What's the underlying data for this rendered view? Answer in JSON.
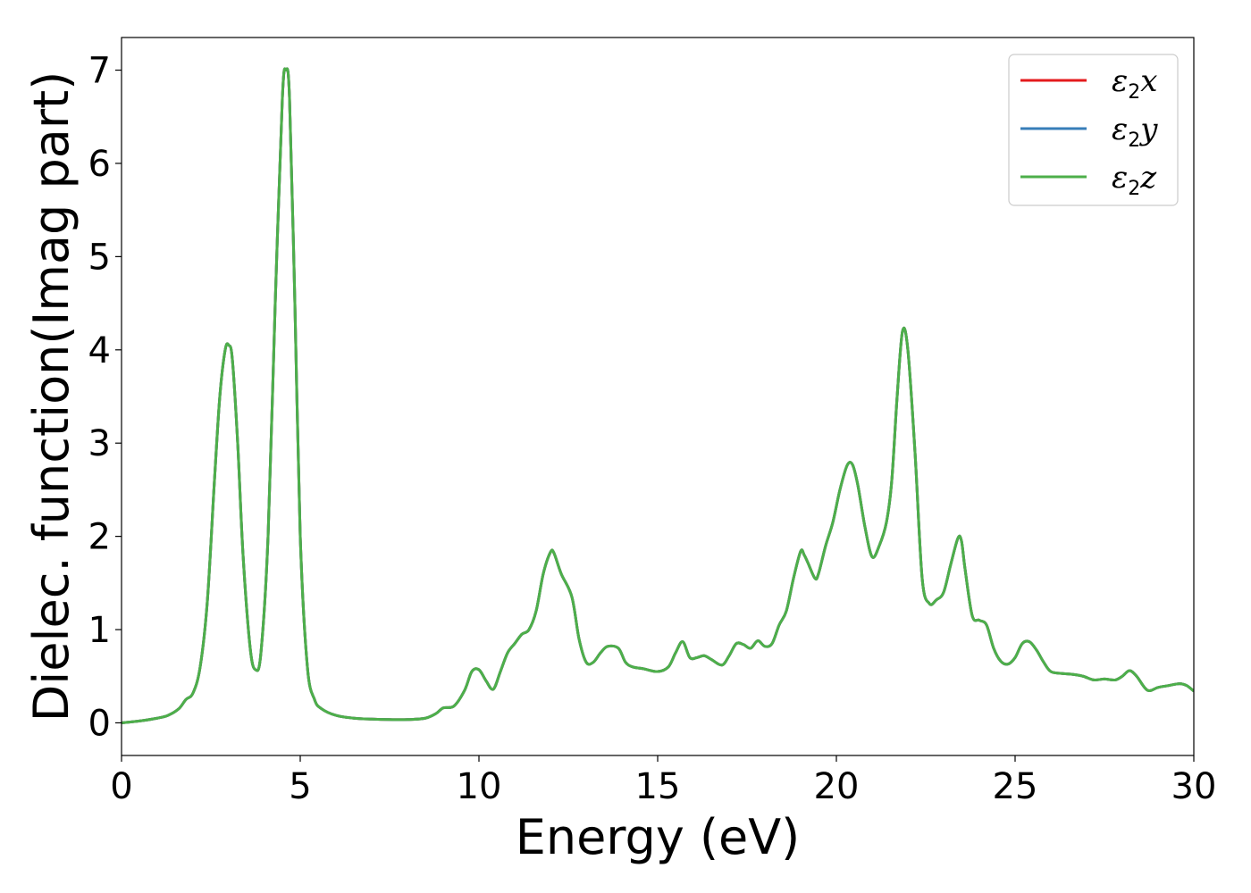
{
  "chart_data": {
    "type": "line",
    "title": "",
    "xlabel": "Energy (eV)",
    "ylabel": "Dielec. function(Imag part)",
    "xlim": [
      0,
      30
    ],
    "ylim": [
      -0.35,
      7.35
    ],
    "xticks": [
      0,
      5,
      10,
      15,
      20,
      25,
      30
    ],
    "yticks": [
      0,
      1,
      2,
      3,
      4,
      5,
      6,
      7
    ],
    "grid": false,
    "legend_position": "top-right",
    "x": [
      0,
      0.5,
      1.0,
      1.3,
      1.6,
      1.8,
      2.0,
      2.2,
      2.4,
      2.6,
      2.75,
      2.9,
      3.0,
      3.1,
      3.25,
      3.4,
      3.6,
      3.75,
      3.9,
      4.1,
      4.3,
      4.5,
      4.6,
      4.7,
      4.85,
      5.0,
      5.2,
      5.4,
      5.6,
      6.0,
      6.5,
      7.0,
      7.5,
      8.0,
      8.5,
      8.8,
      9.0,
      9.3,
      9.6,
      9.8,
      10.0,
      10.2,
      10.4,
      10.6,
      10.8,
      11.0,
      11.2,
      11.4,
      11.6,
      11.8,
      12.0,
      12.1,
      12.3,
      12.6,
      12.8,
      13.0,
      13.2,
      13.4,
      13.6,
      13.9,
      14.1,
      14.3,
      14.6,
      15.0,
      15.3,
      15.5,
      15.7,
      15.9,
      16.1,
      16.3,
      16.5,
      16.8,
      17.0,
      17.2,
      17.4,
      17.6,
      17.8,
      18.0,
      18.2,
      18.4,
      18.6,
      18.8,
      19.0,
      19.1,
      19.2,
      19.4,
      19.5,
      19.7,
      19.9,
      20.1,
      20.3,
      20.45,
      20.6,
      20.8,
      21.0,
      21.2,
      21.4,
      21.55,
      21.7,
      21.85,
      22.0,
      22.2,
      22.4,
      22.6,
      22.8,
      23.0,
      23.2,
      23.4,
      23.5,
      23.6,
      23.8,
      24.0,
      24.2,
      24.4,
      24.6,
      24.8,
      25.0,
      25.2,
      25.4,
      25.6,
      25.8,
      26.0,
      26.3,
      26.6,
      26.9,
      27.2,
      27.5,
      27.8,
      28.0,
      28.2,
      28.4,
      28.7,
      29.0,
      29.3,
      29.6,
      29.8,
      30.0
    ],
    "series": [
      {
        "name": "x",
        "color": "#e41a1c",
        "y": [
          0.0,
          0.02,
          0.05,
          0.08,
          0.15,
          0.25,
          0.32,
          0.6,
          1.3,
          2.6,
          3.5,
          4.0,
          4.05,
          3.9,
          3.0,
          1.8,
          0.8,
          0.57,
          0.75,
          2.0,
          4.5,
          6.7,
          7.0,
          6.7,
          4.5,
          2.0,
          0.6,
          0.25,
          0.15,
          0.08,
          0.05,
          0.04,
          0.035,
          0.035,
          0.05,
          0.1,
          0.16,
          0.18,
          0.35,
          0.55,
          0.57,
          0.45,
          0.36,
          0.55,
          0.75,
          0.85,
          0.95,
          1.0,
          1.2,
          1.6,
          1.83,
          1.82,
          1.6,
          1.35,
          0.9,
          0.65,
          0.65,
          0.75,
          0.82,
          0.8,
          0.65,
          0.6,
          0.58,
          0.55,
          0.6,
          0.75,
          0.87,
          0.7,
          0.7,
          0.72,
          0.68,
          0.62,
          0.72,
          0.85,
          0.84,
          0.8,
          0.88,
          0.82,
          0.85,
          1.05,
          1.2,
          1.55,
          1.84,
          1.8,
          1.72,
          1.55,
          1.6,
          1.9,
          2.15,
          2.5,
          2.76,
          2.77,
          2.55,
          2.1,
          1.78,
          1.9,
          2.15,
          2.6,
          3.5,
          4.2,
          4.0,
          2.9,
          1.55,
          1.28,
          1.32,
          1.4,
          1.7,
          1.98,
          1.95,
          1.65,
          1.15,
          1.1,
          1.05,
          0.8,
          0.66,
          0.63,
          0.7,
          0.85,
          0.87,
          0.78,
          0.65,
          0.55,
          0.53,
          0.52,
          0.5,
          0.46,
          0.47,
          0.46,
          0.5,
          0.56,
          0.5,
          0.35,
          0.38,
          0.4,
          0.42,
          0.4,
          0.34
        ]
      },
      {
        "name": "y",
        "color": "#377eb8",
        "y": [
          0.0,
          0.02,
          0.05,
          0.08,
          0.15,
          0.25,
          0.32,
          0.6,
          1.3,
          2.6,
          3.5,
          4.0,
          4.05,
          3.9,
          3.0,
          1.8,
          0.8,
          0.57,
          0.75,
          2.0,
          4.5,
          6.7,
          7.0,
          6.7,
          4.5,
          2.0,
          0.6,
          0.25,
          0.15,
          0.08,
          0.05,
          0.04,
          0.035,
          0.035,
          0.05,
          0.1,
          0.16,
          0.18,
          0.35,
          0.55,
          0.57,
          0.45,
          0.36,
          0.55,
          0.75,
          0.85,
          0.95,
          1.0,
          1.2,
          1.6,
          1.83,
          1.82,
          1.6,
          1.35,
          0.9,
          0.65,
          0.65,
          0.75,
          0.82,
          0.8,
          0.65,
          0.6,
          0.58,
          0.55,
          0.6,
          0.75,
          0.87,
          0.7,
          0.7,
          0.72,
          0.68,
          0.62,
          0.72,
          0.85,
          0.84,
          0.8,
          0.88,
          0.82,
          0.85,
          1.05,
          1.2,
          1.55,
          1.84,
          1.8,
          1.72,
          1.55,
          1.6,
          1.9,
          2.15,
          2.5,
          2.76,
          2.77,
          2.55,
          2.1,
          1.78,
          1.9,
          2.15,
          2.6,
          3.5,
          4.2,
          4.0,
          2.9,
          1.55,
          1.28,
          1.32,
          1.4,
          1.7,
          1.98,
          1.95,
          1.65,
          1.15,
          1.1,
          1.05,
          0.8,
          0.66,
          0.63,
          0.7,
          0.85,
          0.87,
          0.78,
          0.65,
          0.55,
          0.53,
          0.52,
          0.5,
          0.46,
          0.47,
          0.46,
          0.5,
          0.56,
          0.5,
          0.35,
          0.38,
          0.4,
          0.42,
          0.4,
          0.34
        ]
      },
      {
        "name": "z",
        "color": "#4daf4a",
        "y": [
          0.0,
          0.02,
          0.05,
          0.08,
          0.15,
          0.25,
          0.32,
          0.6,
          1.3,
          2.6,
          3.5,
          4.0,
          4.05,
          3.9,
          3.0,
          1.8,
          0.8,
          0.57,
          0.75,
          2.0,
          4.5,
          6.7,
          7.0,
          6.7,
          4.5,
          2.0,
          0.6,
          0.25,
          0.15,
          0.08,
          0.05,
          0.04,
          0.035,
          0.035,
          0.05,
          0.1,
          0.16,
          0.18,
          0.35,
          0.55,
          0.57,
          0.45,
          0.36,
          0.55,
          0.75,
          0.85,
          0.95,
          1.0,
          1.2,
          1.6,
          1.83,
          1.82,
          1.6,
          1.35,
          0.9,
          0.65,
          0.65,
          0.75,
          0.82,
          0.8,
          0.65,
          0.6,
          0.58,
          0.55,
          0.6,
          0.75,
          0.87,
          0.7,
          0.7,
          0.72,
          0.68,
          0.62,
          0.72,
          0.85,
          0.84,
          0.8,
          0.88,
          0.82,
          0.85,
          1.05,
          1.2,
          1.55,
          1.84,
          1.8,
          1.72,
          1.55,
          1.6,
          1.9,
          2.15,
          2.5,
          2.76,
          2.77,
          2.55,
          2.1,
          1.78,
          1.9,
          2.15,
          2.6,
          3.5,
          4.2,
          4.0,
          2.9,
          1.55,
          1.28,
          1.32,
          1.4,
          1.7,
          1.98,
          1.95,
          1.65,
          1.15,
          1.1,
          1.05,
          0.8,
          0.66,
          0.63,
          0.7,
          0.85,
          0.87,
          0.78,
          0.65,
          0.55,
          0.53,
          0.52,
          0.5,
          0.46,
          0.47,
          0.46,
          0.5,
          0.56,
          0.5,
          0.35,
          0.38,
          0.4,
          0.42,
          0.4,
          0.34
        ]
      }
    ],
    "legend": [
      {
        "symbol": "ε",
        "subscript": "2",
        "axis": "x",
        "color": "#e41a1c"
      },
      {
        "symbol": "ε",
        "subscript": "2",
        "axis": "y",
        "color": "#377eb8"
      },
      {
        "symbol": "ε",
        "subscript": "2",
        "axis": "z",
        "color": "#4daf4a"
      }
    ]
  }
}
